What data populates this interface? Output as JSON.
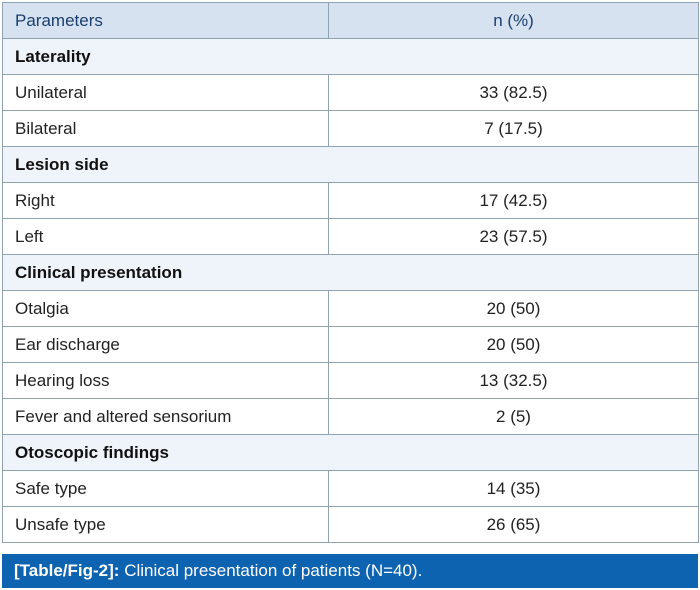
{
  "table": {
    "header": {
      "col1": "Parameters",
      "col2": "n (%)"
    },
    "sections": [
      {
        "title": "Laterality",
        "rows": [
          {
            "label": "Unilateral",
            "value": "33 (82.5)"
          },
          {
            "label": "Bilateral",
            "value": "7 (17.5)"
          }
        ]
      },
      {
        "title": "Lesion side",
        "rows": [
          {
            "label": "Right",
            "value": "17 (42.5)"
          },
          {
            "label": "Left",
            "value": "23 (57.5)"
          }
        ]
      },
      {
        "title": "Clinical presentation",
        "rows": [
          {
            "label": "Otalgia",
            "value": "20 (50)"
          },
          {
            "label": "Ear discharge",
            "value": "20 (50)"
          },
          {
            "label": "Hearing loss",
            "value": "13 (32.5)"
          },
          {
            "label": "Fever and altered sensorium",
            "value": "2 (5)"
          }
        ]
      },
      {
        "title": "Otoscopic findings",
        "rows": [
          {
            "label": "Safe type",
            "value": "14 (35)"
          },
          {
            "label": "Unsafe type",
            "value": "26 (65)"
          }
        ]
      }
    ]
  },
  "caption": {
    "tag": "[Table/Fig-2]:",
    "text": "Clinical presentation of patients (N=40)."
  },
  "colors": {
    "header_bg": "#d6e2f0",
    "header_text": "#1b3f6e",
    "section_bg": "#eef4fa",
    "border": "#8fa3b4",
    "caption_bg": "#0d63b0"
  }
}
